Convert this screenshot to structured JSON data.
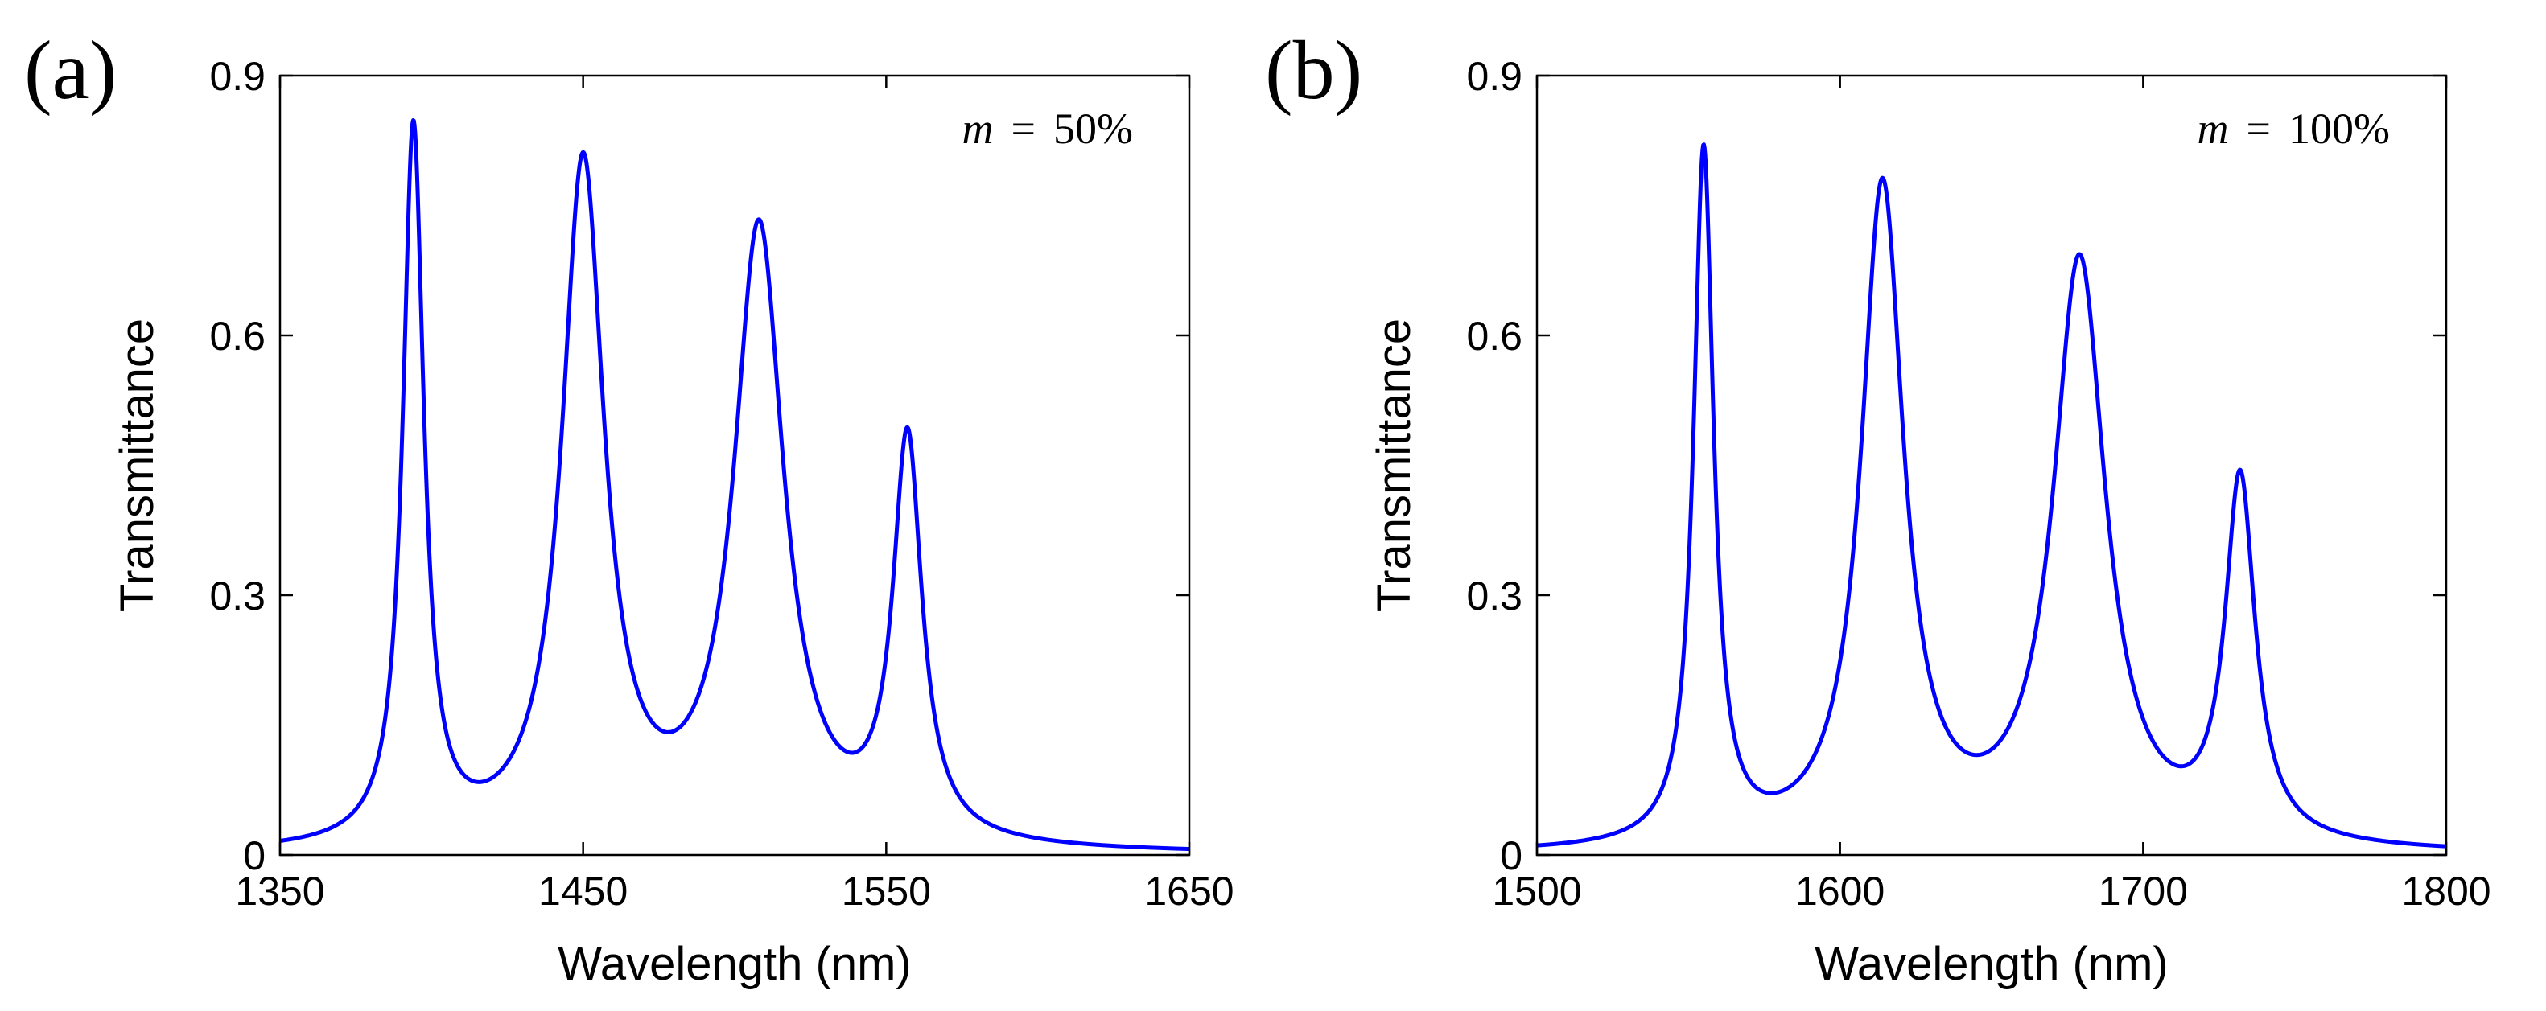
{
  "chart_data": [
    {
      "type": "line",
      "panel_label": "(a)",
      "annotation": {
        "variable": "m",
        "relation": "=",
        "value": "50%"
      },
      "xlabel": "Wavelength (nm)",
      "ylabel": "Transmittance",
      "xlim": [
        1350,
        1650
      ],
      "ylim": [
        0,
        0.9
      ],
      "xticks": [
        "1350",
        "1450",
        "1550",
        "1650"
      ],
      "yticks": [
        "0",
        "0.3",
        "0.6",
        "0.9"
      ],
      "grid": false,
      "baseline": 0.0,
      "series": [
        {
          "name": "transmittance",
          "color": "#0000ff",
          "peaks": [
            {
              "center": 1394,
              "height": 0.825,
              "width": 4.2
            },
            {
              "center": 1450,
              "height": 0.785,
              "width": 8.5
            },
            {
              "center": 1508,
              "height": 0.71,
              "width": 10.0
            },
            {
              "center": 1557,
              "height": 0.46,
              "width": 5.8
            }
          ]
        }
      ],
      "key_points": [
        {
          "x": 1420,
          "y": 0.075
        },
        {
          "x": 1480,
          "y": 0.125
        },
        {
          "x": 1538,
          "y": 0.13
        }
      ]
    },
    {
      "type": "line",
      "panel_label": "(b)",
      "annotation": {
        "variable": "m",
        "relation": "=",
        "value": "100%"
      },
      "xlabel": "Wavelength (nm)",
      "ylabel": "Transmittance",
      "xlim": [
        1500,
        1800
      ],
      "ylim": [
        0,
        0.9
      ],
      "xticks": [
        "1500",
        "1600",
        "1700",
        "1800"
      ],
      "yticks": [
        "0",
        "0.3",
        "0.6",
        "0.9"
      ],
      "grid": false,
      "baseline": 0.0,
      "series": [
        {
          "name": "transmittance",
          "color": "#0000ff",
          "peaks": [
            {
              "center": 1555,
              "height": 0.8,
              "width": 4.0
            },
            {
              "center": 1614,
              "height": 0.76,
              "width": 8.5
            },
            {
              "center": 1679,
              "height": 0.675,
              "width": 10.5
            },
            {
              "center": 1732,
              "height": 0.415,
              "width": 6.0
            }
          ]
        }
      ],
      "key_points": [
        {
          "x": 1580,
          "y": 0.062
        },
        {
          "x": 1645,
          "y": 0.105
        },
        {
          "x": 1710,
          "y": 0.11
        }
      ]
    }
  ]
}
